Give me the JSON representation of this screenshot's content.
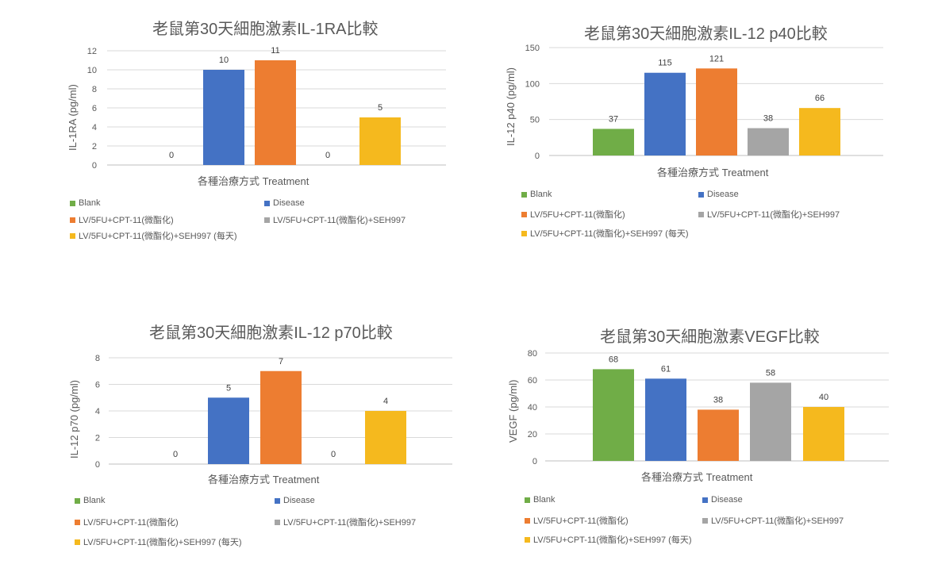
{
  "colors": {
    "Blank": "#70ad47",
    "Disease": "#4472c4",
    "LV/5FU+CPT-11(微酯化)": "#ed7d31",
    "LV/5FU+CPT-11(微酯化)+SEH997": "#a5a5a5",
    "LV/5FU+CPT-11(微酯化)+SEH997 (每天)": "#f5b91e"
  },
  "chart_data": [
    {
      "type": "bar",
      "title": "老鼠第30天細胞激素IL-1RA比較",
      "xlabel": "各種治療方式 Treatment",
      "ylabel": "IL-1RA  (pg/ml)",
      "ylim": [
        0,
        12
      ],
      "yticks": [
        "0",
        "2",
        "4",
        "6",
        "8",
        "10",
        "12"
      ],
      "grid": true,
      "legend_position": "bottom",
      "series": [
        {
          "name": "Blank",
          "value": 0
        },
        {
          "name": "Disease",
          "value": 10
        },
        {
          "name": "LV/5FU+CPT-11(微酯化)",
          "value": 11
        },
        {
          "name": "LV/5FU+CPT-11(微酯化)+SEH997",
          "value": 0
        },
        {
          "name": "LV/5FU+CPT-11(微酯化)+SEH997 (每天)",
          "value": 5
        }
      ]
    },
    {
      "type": "bar",
      "title": "老鼠第30天細胞激素IL-12 p40比較",
      "xlabel": "各種治療方式 Treatment",
      "ylabel": "IL-12 p40 (pg/ml)",
      "ylim": [
        0,
        150
      ],
      "yticks": [
        "0",
        "50",
        "100",
        "150"
      ],
      "grid": true,
      "legend_position": "bottom",
      "series": [
        {
          "name": "Blank",
          "value": 37
        },
        {
          "name": "Disease",
          "value": 115
        },
        {
          "name": "LV/5FU+CPT-11(微酯化)",
          "value": 121
        },
        {
          "name": "LV/5FU+CPT-11(微酯化)+SEH997",
          "value": 38
        },
        {
          "name": "LV/5FU+CPT-11(微酯化)+SEH997 (每天)",
          "value": 66
        }
      ]
    },
    {
      "type": "bar",
      "title": "老鼠第30天細胞激素IL-12 p70比較",
      "xlabel": "各種治療方式 Treatment",
      "ylabel": "IL-12 p70 (pg/ml)",
      "ylim": [
        0,
        8
      ],
      "yticks": [
        "0",
        "2",
        "4",
        "6",
        "8"
      ],
      "grid": true,
      "legend_position": "bottom",
      "series": [
        {
          "name": "Blank",
          "value": 0
        },
        {
          "name": "Disease",
          "value": 5
        },
        {
          "name": "LV/5FU+CPT-11(微酯化)",
          "value": 7
        },
        {
          "name": "LV/5FU+CPT-11(微酯化)+SEH997",
          "value": 0
        },
        {
          "name": "LV/5FU+CPT-11(微酯化)+SEH997 (每天)",
          "value": 4
        }
      ]
    },
    {
      "type": "bar",
      "title": "老鼠第30天細胞激素VEGF比較",
      "xlabel": "各種治療方式 Treatment",
      "ylabel": "VEGF (pg/ml)",
      "ylim": [
        0,
        80
      ],
      "yticks": [
        "0",
        "20",
        "40",
        "60",
        "80"
      ],
      "grid": true,
      "legend_position": "bottom",
      "series": [
        {
          "name": "Blank",
          "value": 68
        },
        {
          "name": "Disease",
          "value": 61
        },
        {
          "name": "LV/5FU+CPT-11(微酯化)",
          "value": 38
        },
        {
          "name": "LV/5FU+CPT-11(微酯化)+SEH997",
          "value": 58
        },
        {
          "name": "LV/5FU+CPT-11(微酯化)+SEH997 (每天)",
          "value": 40
        }
      ]
    }
  ]
}
